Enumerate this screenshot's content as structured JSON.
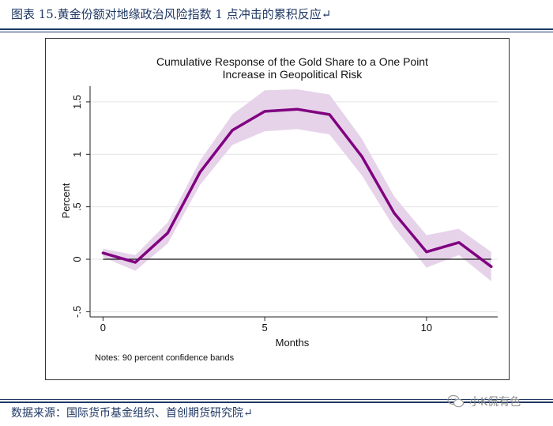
{
  "caption": "图表 15.黄金份额对地缘政治风险指数 1 点冲击的累积反应↵",
  "source": "数据来源：国际货币基金组织、首创期货研究院↵",
  "watermark": "小K侃有色",
  "colors": {
    "line": "#800080",
    "band": "#e6d3ea",
    "grid": "#e4e4e4",
    "header": "#1f3864"
  },
  "chart_data": {
    "type": "line",
    "title": "Cumulative Response of the Gold Share to a One Point",
    "subtitle": "Increase in Geopolitical Risk",
    "xlabel": "Months",
    "ylabel": "Percent",
    "note": "Notes: 90 percent confidence bands",
    "x": [
      0,
      1,
      2,
      3,
      4,
      5,
      6,
      7,
      8,
      9,
      10,
      11,
      12
    ],
    "series": [
      {
        "values": [
          0.06,
          -0.03,
          0.25,
          0.83,
          1.23,
          1.41,
          1.43,
          1.38,
          0.98,
          0.44,
          0.07,
          0.16,
          -0.07
        ]
      }
    ],
    "band_upper": [
      0.1,
      0.04,
      0.35,
      0.94,
      1.38,
      1.61,
      1.62,
      1.57,
      1.15,
      0.6,
      0.23,
      0.29,
      0.07
    ],
    "band_lower": [
      0.02,
      -0.11,
      0.15,
      0.71,
      1.09,
      1.22,
      1.24,
      1.19,
      0.8,
      0.3,
      -0.08,
      0.04,
      -0.21
    ],
    "xlim": [
      -0.4,
      12.2
    ],
    "ylim": [
      -0.55,
      1.65
    ],
    "xticks": [
      0,
      5,
      10
    ],
    "xtick_labels": [
      "0",
      "5",
      "10"
    ],
    "yticks": [
      -0.5,
      0,
      0.5,
      1,
      1.5
    ],
    "ytick_labels": [
      "-.5",
      "0",
      ".5",
      "1",
      "1.5"
    ],
    "zero_line": 0,
    "grid": true
  }
}
